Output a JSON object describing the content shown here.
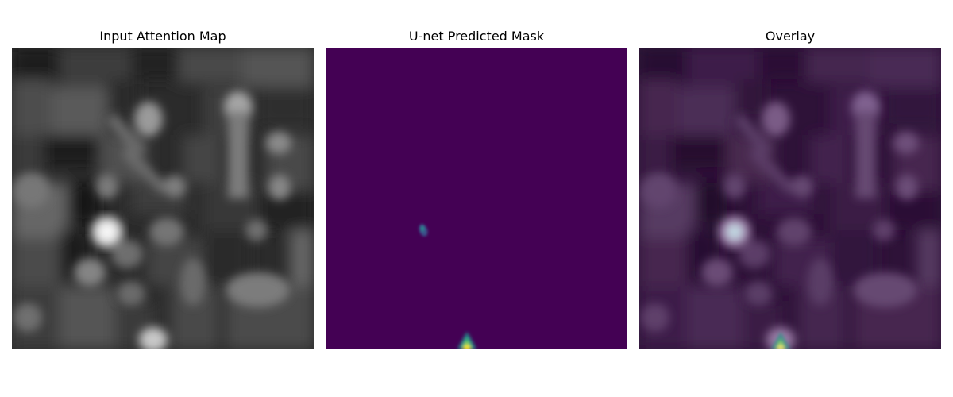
{
  "panels": [
    {
      "title": "Input Attention Map"
    },
    {
      "title": "U-net Predicted Mask"
    },
    {
      "title": "Overlay"
    }
  ],
  "colors": {
    "background": "#ffffff",
    "mask_background": "#440154",
    "overlay_tint": "#3b0a4a",
    "viridis_blue": "#3b528b",
    "viridis_teal": "#21918c",
    "viridis_green": "#5ec962",
    "viridis_yellow": "#fde725"
  }
}
